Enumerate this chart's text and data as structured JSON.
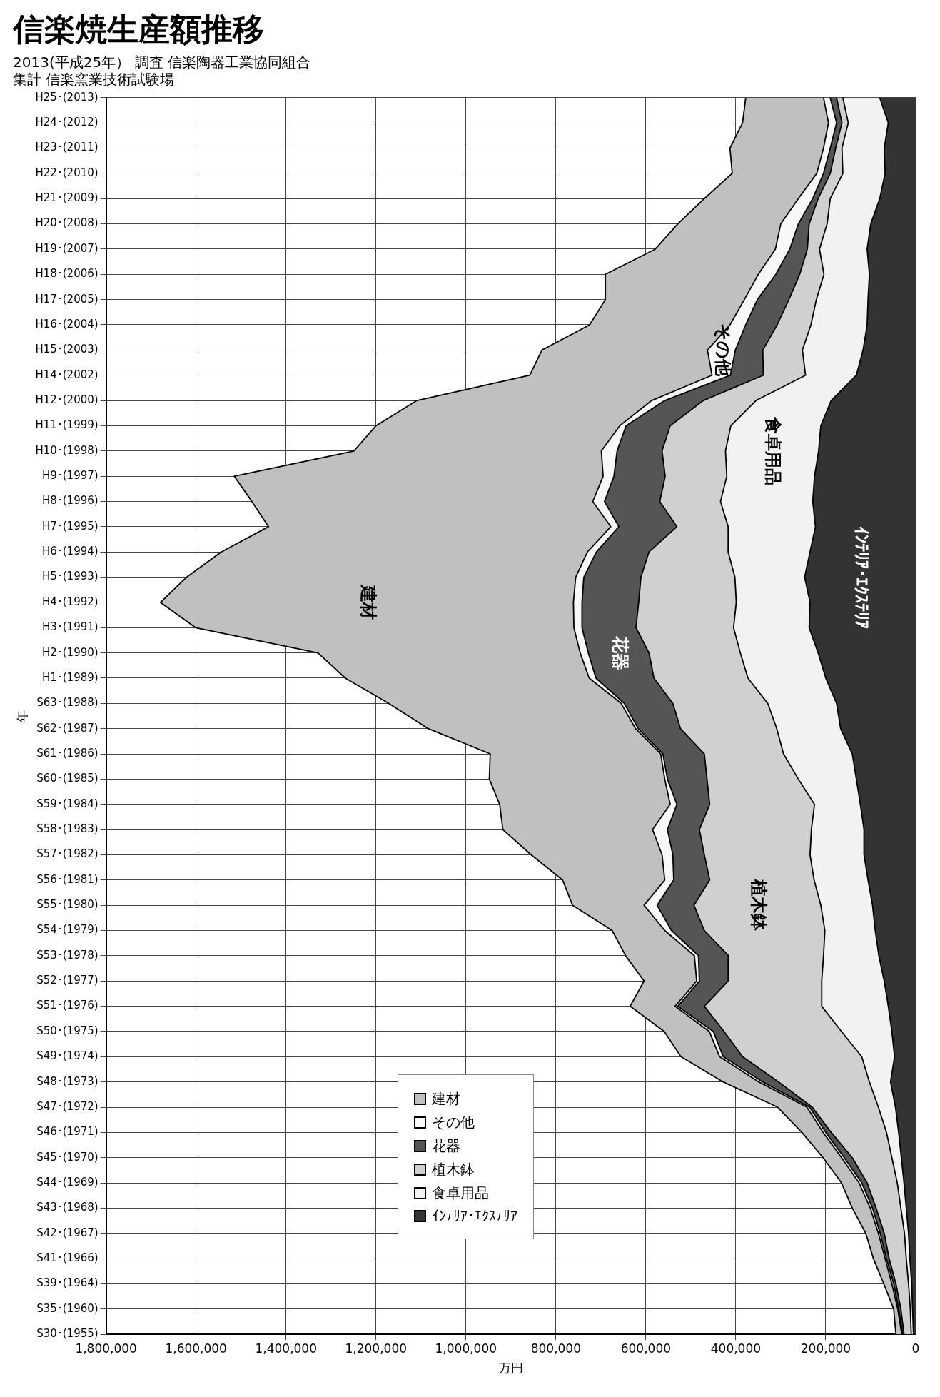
{
  "chart_data": {
    "type": "area",
    "title": "信楽焼生産額推移",
    "subtitle": "2013(平成25年） 調査 信楽陶器工業協同組合",
    "xlabel": "万円",
    "ylabel": "年",
    "orientation": "horizontal",
    "stacked": true,
    "grid": true,
    "legend": "bottom left",
    "categories": [
      "H25･(2013)",
      "H24･(2012)",
      "H23･(2011)",
      "H22･(2010)",
      "H21･(2009)",
      "H20･(2008)",
      "H19･(2007)",
      "H18･(2006)",
      "H17･(2005)",
      "H16･(2004)",
      "H15･(2003)",
      "H14･(2002)",
      "H12･(2000)",
      "H11･(1999)",
      "H10･(1998)",
      "H9･(1997)",
      "H8･(1996)",
      "H7･(1995)",
      "H6･(1994)",
      "H5･(1993)",
      "H4･(1992)",
      "H3･(1991)",
      "H2･(1990)",
      "H1･(1989)",
      "S63･(1988)",
      "S62･(1987)",
      "S61･(1986)",
      "S60･(1985)",
      "S59･(1984)",
      "S58･(1983)",
      "S57･(1982)",
      "S56･(1981)",
      "S55･(1980)",
      "S54･(1979)",
      "S53･(1978)",
      "S52･(1977)",
      "S51･(1976)",
      "S50･(1975)",
      "S49･(1974)",
      "S48･(1973)",
      "S47･(1972)",
      "S46･(1971)",
      "S45･(1970)",
      "S44･(1969)",
      "S43･(1968)",
      "S42･(1967)",
      "S41･(1966)",
      "S39･(1964)",
      "S35･(1960)",
      "S30･(1955)"
    ],
    "xlim": [
      1800000,
      0
    ],
    "xticks": [
      {
        "value": 1800000,
        "label": "1,800,000"
      },
      {
        "value": 1600000,
        "label": "1,600,000"
      },
      {
        "value": 1400000,
        "label": "1,400,000"
      },
      {
        "value": 1200000,
        "label": "1,200,000"
      },
      {
        "value": 1000000,
        "label": "1,000,000"
      },
      {
        "value": 800000,
        "label": "800,000"
      },
      {
        "value": 600000,
        "label": "600,000"
      },
      {
        "value": 400000,
        "label": "400,000"
      },
      {
        "value": 200000,
        "label": "200,000"
      },
      0
    ],
    "series": [
      {
        "name": "ｲﾝﾃﾘｱ･ｴｸｽﾃﾘｱ",
        "color": "#333333",
        "values": [
          80000,
          61000,
          70000,
          68000,
          80000,
          100000,
          108000,
          103000,
          106000,
          108000,
          117000,
          132000,
          188000,
          211000,
          216000,
          225000,
          229000,
          223000,
          235000,
          247000,
          235000,
          237000,
          217000,
          200000,
          176000,
          167000,
          141000,
          132000,
          123000,
          115000,
          115000,
          106000,
          96000,
          90000,
          82000,
          70000,
          61000,
          53000,
          47000,
          56000,
          45000,
          38000,
          32000,
          26000,
          21000,
          16000,
          13000,
          9000,
          7000,
          5000
        ]
      },
      {
        "name": "食卓用品",
        "color": "#f2f2f2",
        "values": [
          82000,
          89000,
          94000,
          94000,
          110000,
          97000,
          106000,
          101000,
          115000,
          125000,
          135000,
          113000,
          167000,
          200000,
          207000,
          195000,
          205000,
          194000,
          182000,
          155000,
          164000,
          168000,
          173000,
          173000,
          153000,
          142000,
          153000,
          129000,
          102000,
          117000,
          120000,
          120000,
          115000,
          112000,
          123000,
          139000,
          148000,
          112000,
          73000,
          47000,
          38000,
          27000,
          21000,
          15000,
          12000,
          9000,
          8000,
          7000,
          5000,
          5000
        ]
      },
      {
        "name": "植木鉢",
        "color": "#d0d0d0",
        "values": [
          14000,
          14000,
          14000,
          28000,
          27000,
          40000,
          27000,
          54000,
          61000,
          75000,
          88000,
          94000,
          117000,
          135000,
          141000,
          137000,
          135000,
          114000,
          176000,
          209000,
          217000,
          217000,
          203000,
          209000,
          211000,
          214000,
          176000,
          203000,
          233000,
          249000,
          235000,
          232000,
          282000,
          268000,
          211000,
          208000,
          261000,
          261000,
          265000,
          202000,
          147000,
          123000,
          88000,
          67000,
          55000,
          45000,
          38000,
          28000,
          21000,
          16000
        ]
      },
      {
        "name": "花器",
        "color": "#555555",
        "values": [
          14000,
          12000,
          12000,
          15000,
          12000,
          24000,
          39000,
          53000,
          70000,
          70000,
          61000,
          73000,
          86000,
          98000,
          100000,
          114000,
          123000,
          129000,
          117000,
          127000,
          126000,
          120000,
          135000,
          129000,
          108000,
          94000,
          92000,
          88000,
          73000,
          71000,
          70000,
          80000,
          82000,
          73000,
          67000,
          64000,
          59000,
          24000,
          43000,
          35000,
          6000,
          12000,
          18000,
          12000,
          8000,
          9000,
          6000,
          5000,
          5000,
          3000
        ]
      },
      {
        "name": "その他",
        "color": "#f8f8f8",
        "values": [
          15000,
          18000,
          15000,
          15000,
          32000,
          39000,
          32000,
          39000,
          29000,
          35000,
          62000,
          41000,
          29000,
          14000,
          35000,
          24000,
          26000,
          18000,
          20000,
          18000,
          19000,
          18000,
          18000,
          15000,
          7000,
          6000,
          5000,
          6000,
          15000,
          33000,
          24000,
          20000,
          29000,
          15000,
          9000,
          6000,
          6000,
          9000,
          8000,
          9000,
          6000,
          6000,
          6000,
          6000,
          5000,
          4000,
          3000,
          4000,
          2000,
          2000
        ]
      },
      {
        "name": "建材",
        "color": "#c0c0c0",
        "values": [
          173000,
          191000,
          208000,
          188000,
          209000,
          229000,
          267000,
          340000,
          309000,
          312000,
          368000,
          405000,
          522000,
          542000,
          550000,
          820000,
          758000,
          761000,
          814000,
          865000,
          918000,
          841000,
          583000,
          542000,
          517000,
          461000,
          379000,
          390000,
          379000,
          333000,
          291000,
          227000,
          159000,
          117000,
          153000,
          117000,
          100000,
          100000,
          86000,
          79000,
          65000,
          47000,
          41000,
          39000,
          40000,
          28000,
          26000,
          18000,
          9000,
          13000
        ]
      }
    ],
    "annotations": [
      "集計 信楽窯業技術試験場"
    ]
  }
}
